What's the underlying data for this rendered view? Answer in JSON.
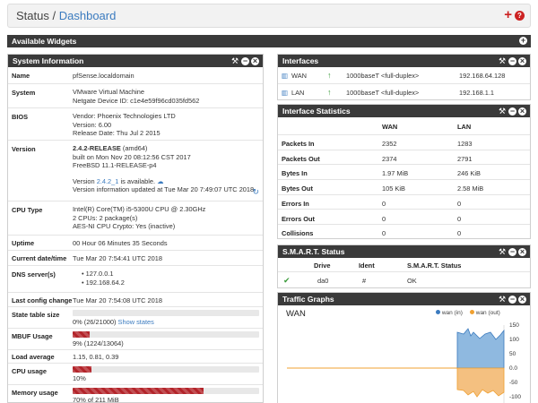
{
  "breadcrumb": {
    "root": "Status",
    "sep": "/",
    "current": "Dashboard"
  },
  "widgets_bar": {
    "title": "Available Widgets"
  },
  "sysinfo": {
    "title": "System Information",
    "name": {
      "label": "Name",
      "value": "pfSense.localdomain"
    },
    "system": {
      "label": "System",
      "value": "VMware Virtual Machine",
      "serial": "Netgate Device ID: c1e4e59f96cd035fd562"
    },
    "bios": {
      "label": "BIOS",
      "vendor": "Vendor: Phoenix Technologies LTD",
      "version": "Version: 6.00",
      "release": "Release Date: Thu Jul 2 2015"
    },
    "version": {
      "label": "Version",
      "release": "2.4.2-RELEASE",
      "arch": " (amd64)",
      "built": "built on Mon Nov 20 08:12:56 CST 2017",
      "freebsd": "FreeBSD 11.1-RELEASE-p4",
      "update_prefix": "Version ",
      "update_version": "2.4.2_1",
      "update_suffix": " is available.",
      "checked": "Version information updated at Tue Mar 20 7:49:07 UTC 2018"
    },
    "cpu": {
      "label": "CPU Type",
      "model": "Intel(R) Core(TM) i5-5300U CPU @ 2.30GHz",
      "cpus": "2 CPUs: 2 package(s)",
      "aesni": "AES-NI CPU Crypto: Yes (inactive)"
    },
    "uptime": {
      "label": "Uptime",
      "value": "00 Hour 06 Minutes 35 Seconds"
    },
    "datetime": {
      "label": "Current date/time",
      "value": "Tue Mar 20 7:54:41 UTC 2018"
    },
    "dns": {
      "label": "DNS server(s)",
      "servers": [
        "127.0.0.1",
        "192.168.64.2"
      ]
    },
    "lastconfig": {
      "label": "Last config change",
      "value": "Tue Mar 20 7:54:08 UTC 2018"
    },
    "statetable": {
      "label": "State table size",
      "value": "0% (26/21000)",
      "link": "Show states",
      "percent": 0
    },
    "mbuf": {
      "label": "MBUF Usage",
      "value": "9% (1224/13064)",
      "percent": 9
    },
    "load": {
      "label": "Load average",
      "value": "1.15, 0.81, 0.39"
    },
    "cpuusage": {
      "label": "CPU usage",
      "value": "10%",
      "percent": 10
    },
    "memory": {
      "label": "Memory usage",
      "value": "70% of 211 MiB",
      "percent": 70
    }
  },
  "interfaces": {
    "title": "Interfaces",
    "rows": [
      {
        "name": "WAN",
        "media": "1000baseT <full-duplex>",
        "ip": "192.168.64.128"
      },
      {
        "name": "LAN",
        "media": "1000baseT <full-duplex>",
        "ip": "192.168.1.1"
      }
    ]
  },
  "ifstats": {
    "title": "Interface Statistics",
    "cols": [
      "WAN",
      "LAN"
    ],
    "rows": [
      {
        "label": "Packets In",
        "wan": "2352",
        "lan": "1283"
      },
      {
        "label": "Packets Out",
        "wan": "2374",
        "lan": "2791"
      },
      {
        "label": "Bytes In",
        "wan": "1.97 MiB",
        "lan": "246 KiB"
      },
      {
        "label": "Bytes Out",
        "wan": "105 KiB",
        "lan": "2.58 MiB"
      },
      {
        "label": "Errors In",
        "wan": "0",
        "lan": "0"
      },
      {
        "label": "Errors Out",
        "wan": "0",
        "lan": "0"
      },
      {
        "label": "Collisions",
        "wan": "0",
        "lan": "0"
      }
    ]
  },
  "smart": {
    "title": "S.M.A.R.T. Status",
    "cols": [
      "Drive",
      "Ident",
      "S.M.A.R.T. Status"
    ],
    "rows": [
      {
        "drive": "da0",
        "ident": "#",
        "status": "OK"
      }
    ]
  },
  "traffic": {
    "title": "Traffic Graphs",
    "graph": "WAN",
    "legend_in": "wan (in)",
    "legend_out": "wan (out)",
    "color_in": "#3b7bbf",
    "color_out": "#f0a030",
    "yticks": [
      "150",
      "100",
      "50",
      "0.0",
      "-50",
      "-100"
    ]
  },
  "colors": {
    "accent": "#3b7bbf",
    "bar": "#b3242a",
    "ok": "#3a9b3a"
  }
}
